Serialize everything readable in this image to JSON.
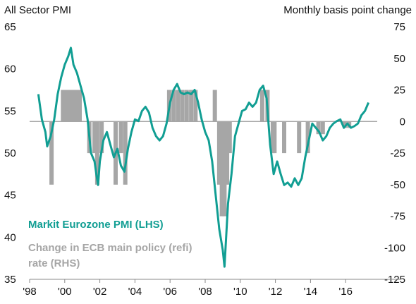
{
  "chart_data": {
    "type": "line+bar",
    "left_axis_title": "All Sector PMI",
    "right_axis_title": "Monthly basis point change",
    "left_ylim": [
      35,
      65
    ],
    "right_ylim": [
      -125,
      75
    ],
    "left_ticks": [
      65,
      60,
      55,
      50,
      45,
      40,
      35
    ],
    "right_ticks": [
      75,
      50,
      25,
      0,
      -25,
      -50,
      -75,
      -100,
      -125
    ],
    "x_range": [
      1998,
      2017.8
    ],
    "x_ticks": [
      {
        "value": 1998,
        "label": "'98"
      },
      {
        "value": 2000,
        "label": "'00"
      },
      {
        "value": 2002,
        "label": "'02"
      },
      {
        "value": 2004,
        "label": "'04"
      },
      {
        "value": 2006,
        "label": "'06"
      },
      {
        "value": 2008,
        "label": "'08"
      },
      {
        "value": 2010,
        "label": "'10"
      },
      {
        "value": 2012,
        "label": "'12"
      },
      {
        "value": 2014,
        "label": "'14"
      },
      {
        "value": 2016,
        "label": "'16"
      }
    ],
    "colors": {
      "pmi": "#119e93",
      "rate": "#a6a6a6",
      "zero_line": "#a6a6a6"
    },
    "legend": [
      {
        "label": "Markit Eurozone PMI  (LHS)",
        "color": "#119e93"
      },
      {
        "label": "Change in ECB main policy (refi)",
        "color": "#a6a6a6"
      },
      {
        "label": "rate (RHS)",
        "color": "#a6a6a6"
      }
    ],
    "series": [
      {
        "name": "Markit Eurozone PMI  (LHS)",
        "axis": "left",
        "type": "line",
        "x": [
          1998.5,
          1998.7,
          1998.9,
          1999.0,
          1999.2,
          1999.4,
          1999.6,
          1999.8,
          2000.0,
          2000.2,
          2000.35,
          2000.5,
          2000.7,
          2000.9,
          2001.1,
          2001.3,
          2001.5,
          2001.7,
          2001.8,
          2001.9,
          2002.0,
          2002.2,
          2002.4,
          2002.6,
          2002.8,
          2003.0,
          2003.2,
          2003.4,
          2003.6,
          2003.8,
          2004.0,
          2004.2,
          2004.4,
          2004.6,
          2004.8,
          2005.0,
          2005.2,
          2005.4,
          2005.6,
          2005.8,
          2006.0,
          2006.2,
          2006.4,
          2006.6,
          2006.8,
          2007.0,
          2007.2,
          2007.4,
          2007.6,
          2007.8,
          2008.0,
          2008.2,
          2008.4,
          2008.6,
          2008.8,
          2009.0,
          2009.1,
          2009.3,
          2009.5,
          2009.7,
          2009.9,
          2010.1,
          2010.3,
          2010.5,
          2010.7,
          2010.9,
          2011.1,
          2011.3,
          2011.5,
          2011.7,
          2011.9,
          2012.1,
          2012.3,
          2012.5,
          2012.7,
          2012.9,
          2013.1,
          2013.3,
          2013.5,
          2013.7,
          2013.9,
          2014.1,
          2014.3,
          2014.5,
          2014.7,
          2014.9,
          2015.1,
          2015.3,
          2015.5,
          2015.7,
          2015.9,
          2016.1,
          2016.3,
          2016.5,
          2016.7,
          2016.9,
          2017.1,
          2017.3
        ],
        "values": [
          57.0,
          54.0,
          52.5,
          50.8,
          52.0,
          54.0,
          57.0,
          59.0,
          60.5,
          61.5,
          62.5,
          60.5,
          59.5,
          58.0,
          56.5,
          54.0,
          50.0,
          49.0,
          47.5,
          46.2,
          49.0,
          51.5,
          52.5,
          51.0,
          49.5,
          50.5,
          48.5,
          47.8,
          50.5,
          52.5,
          54.0,
          53.8,
          55.0,
          55.5,
          54.8,
          53.0,
          52.0,
          51.5,
          52.0,
          53.5,
          56.0,
          57.5,
          58.2,
          57.2,
          57.0,
          57.2,
          57.0,
          57.5,
          56.0,
          54.0,
          52.5,
          51.5,
          49.0,
          45.0,
          41.0,
          38.5,
          36.5,
          44.0,
          47.5,
          52.0,
          53.5,
          55.0,
          55.2,
          56.0,
          55.5,
          56.0,
          57.5,
          58.0,
          56.5,
          51.0,
          47.5,
          49.0,
          47.5,
          46.2,
          46.5,
          46.0,
          47.0,
          46.2,
          47.0,
          49.5,
          51.5,
          53.5,
          53.0,
          52.5,
          51.5,
          52.0,
          53.0,
          53.5,
          53.8,
          54.0,
          53.0,
          53.5,
          53.0,
          53.2,
          53.5,
          54.5,
          55.0,
          56.0
        ]
      },
      {
        "name": "Change in ECB main policy (refi)",
        "axis": "right",
        "type": "bar",
        "x": [
          1999.25,
          1999.9,
          2000.1,
          2000.3,
          2000.5,
          2000.7,
          2000.85,
          2001.4,
          2001.7,
          2001.85,
          2002.1,
          2002.9,
          2003.2,
          2003.45,
          2005.95,
          2006.2,
          2006.45,
          2006.7,
          2006.95,
          2007.2,
          2007.45,
          2008.55,
          2008.8,
          2008.95,
          2009.1,
          2009.25,
          2009.4,
          2011.25,
          2011.55,
          2011.85,
          2011.95,
          2012.5,
          2013.35,
          2013.85,
          2014.45,
          2014.7,
          2015.95,
          2016.2
        ],
        "values": [
          -50,
          25,
          25,
          25,
          25,
          25,
          25,
          -25,
          -25,
          -50,
          -25,
          -50,
          -25,
          -50,
          25,
          25,
          25,
          25,
          25,
          25,
          25,
          25,
          -50,
          -75,
          -75,
          -50,
          -25,
          25,
          25,
          -25,
          -25,
          -25,
          -25,
          -25,
          -10,
          -10,
          -5,
          -5
        ]
      }
    ]
  }
}
